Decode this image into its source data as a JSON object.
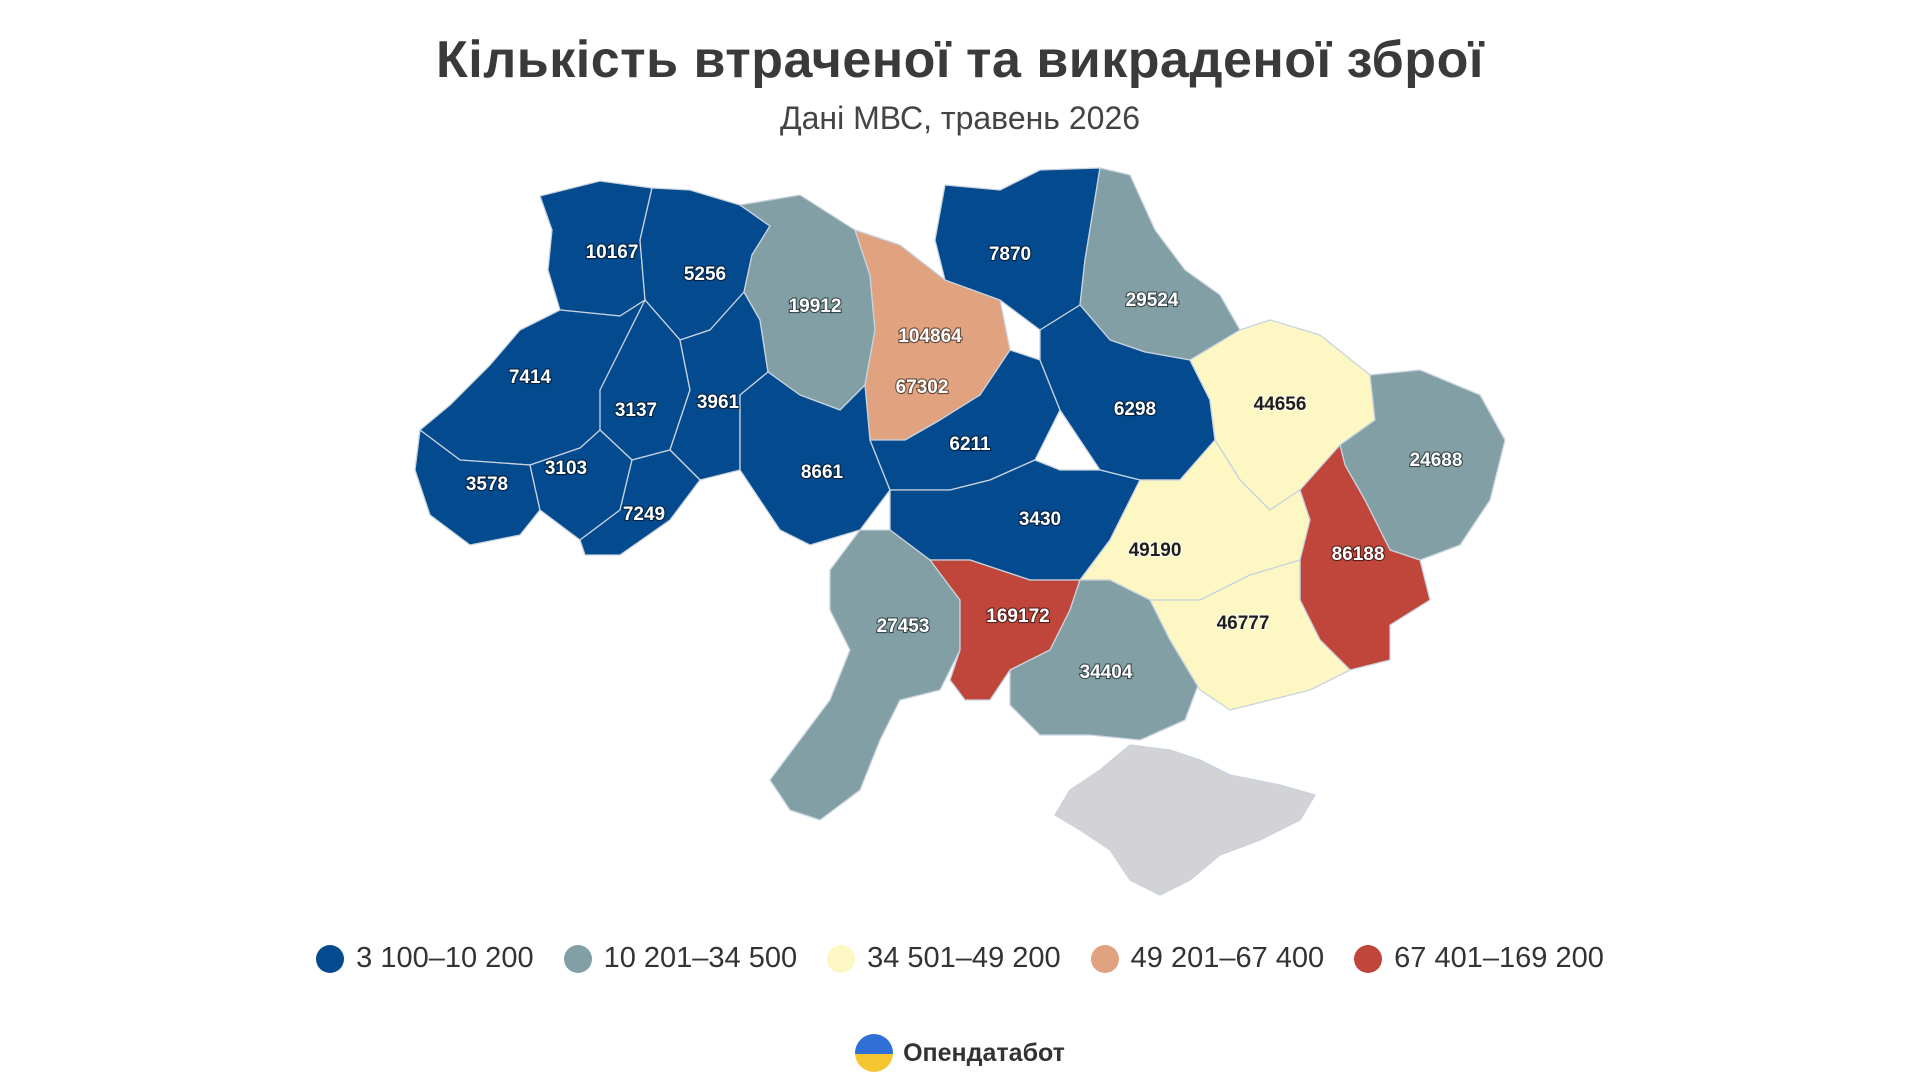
{
  "title": "Кількість втраченої та викраденої зброї",
  "subtitle": "Дані МВС, травень 2026",
  "brand": "Опендатабот",
  "legend": [
    {
      "label": "3 100–10 200",
      "color": "#044a8e"
    },
    {
      "label": "10 201–34 500",
      "color": "#819fa4"
    },
    {
      "label": "34 501–49 200",
      "color": "#fdf7c4"
    },
    {
      "label": "49 201–67 400",
      "color": "#e0a27f"
    },
    {
      "label": "67 401–169 200",
      "color": "#c0453a"
    }
  ],
  "map_data": {
    "type": "choropleth",
    "no_data_color": "#d3d3d6",
    "regions": [
      {
        "id": "volyn",
        "value": "10167",
        "bin": 0
      },
      {
        "id": "rivne",
        "value": "5256",
        "bin": 0
      },
      {
        "id": "lviv",
        "value": "7414",
        "bin": 0
      },
      {
        "id": "ternopil",
        "value": "3137",
        "bin": 0
      },
      {
        "id": "khmelnytskyi",
        "value": "3961",
        "bin": 0
      },
      {
        "id": "zakarpattia",
        "value": "3578",
        "bin": 0
      },
      {
        "id": "ivano-frankivsk",
        "value": "3103",
        "bin": 0
      },
      {
        "id": "chernivtsi",
        "value": "7249",
        "bin": 0
      },
      {
        "id": "zhytomyr",
        "value": "19912",
        "bin": 1
      },
      {
        "id": "kyiv-city",
        "value": "104864",
        "bin": 4
      },
      {
        "id": "kyiv-oblast",
        "value": "67302",
        "bin": 3
      },
      {
        "id": "chernihiv",
        "value": "7870",
        "bin": 0
      },
      {
        "id": "sumy",
        "value": "29524",
        "bin": 1
      },
      {
        "id": "vinnytsia",
        "value": "8661",
        "bin": 0
      },
      {
        "id": "cherkasy",
        "value": "6211",
        "bin": 0
      },
      {
        "id": "poltava",
        "value": "6298",
        "bin": 0
      },
      {
        "id": "kharkiv",
        "value": "44656",
        "bin": 2
      },
      {
        "id": "luhansk",
        "value": "24688",
        "bin": 1
      },
      {
        "id": "kirovohrad",
        "value": "3430",
        "bin": 0
      },
      {
        "id": "dnipropetrovsk",
        "value": "49190",
        "bin": 2
      },
      {
        "id": "donetsk",
        "value": "86188",
        "bin": 4
      },
      {
        "id": "odesa",
        "value": "27453",
        "bin": 1
      },
      {
        "id": "mykolaiv",
        "value": "169172",
        "bin": 4
      },
      {
        "id": "kherson",
        "value": "34404",
        "bin": 1
      },
      {
        "id": "zaporizhzhia",
        "value": "46777",
        "bin": 2
      },
      {
        "id": "crimea",
        "value": "",
        "bin": -1
      }
    ]
  }
}
